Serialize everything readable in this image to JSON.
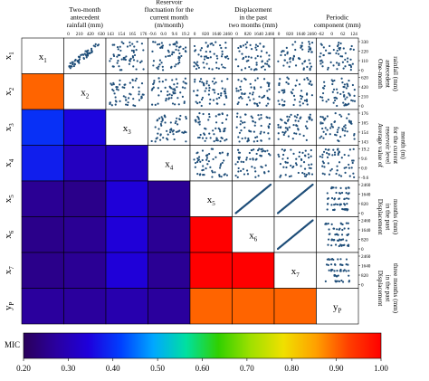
{
  "chart_data": {
    "type": "heatmap",
    "variables": [
      "x1",
      "x2",
      "x3",
      "x4",
      "x5",
      "x6",
      "x7",
      "yP"
    ],
    "variable_labels": [
      {
        "base": "x",
        "sub": "1"
      },
      {
        "base": "x",
        "sub": "2"
      },
      {
        "base": "x",
        "sub": "3"
      },
      {
        "base": "x",
        "sub": "4"
      },
      {
        "base": "x",
        "sub": "5"
      },
      {
        "base": "x",
        "sub": "6"
      },
      {
        "base": "x",
        "sub": "7"
      },
      {
        "base": "y",
        "sub": "P"
      }
    ],
    "top_headers": [
      {
        "lines": [
          "Two-month",
          "antecedent",
          "rainfall (mm)"
        ]
      },
      {
        "lines": [
          "Reservoir",
          "fluctuation for the",
          "current month",
          "(m/month)"
        ]
      },
      {
        "lines": [
          "Displacement",
          "in the past",
          "two months (mm)"
        ]
      },
      {
        "lines": [
          "Periodic",
          "component (mm)"
        ]
      }
    ],
    "right_headers": [
      {
        "lines": [
          "One-month",
          "antecedent",
          "rainfall (mm)"
        ]
      },
      {
        "lines": [
          "Average value of",
          "reservoir level",
          "for the current",
          "month (m)"
        ]
      },
      {
        "lines": [
          "Displacement",
          "in the past",
          "months (mm)"
        ]
      },
      {
        "lines": [
          "Displacement",
          "in the past",
          "three months (mm)"
        ]
      }
    ],
    "top_ticks": [
      {
        "col": 0,
        "labels": [
          "0",
          "210",
          "420",
          "630"
        ]
      },
      {
        "col": 1,
        "labels": [
          "143",
          "154",
          "165",
          "176"
        ]
      },
      {
        "col": 2,
        "labels": [
          "-9.6",
          "0.0",
          "9.6",
          "19.2"
        ]
      },
      {
        "col": 3,
        "labels": [
          "0",
          "820",
          "1640",
          "2460"
        ]
      },
      {
        "col": 4,
        "labels": [
          "0",
          "820",
          "1640",
          "2460"
        ]
      },
      {
        "col": 5,
        "labels": [
          "0",
          "820",
          "1640",
          "2460"
        ]
      },
      {
        "col": 6,
        "labels": [
          "-62",
          "0",
          "62",
          "124"
        ]
      }
    ],
    "right_ticks": [
      {
        "row": 0,
        "labels": [
          "330",
          "220",
          "110",
          "0"
        ]
      },
      {
        "row": 1,
        "labels": [
          "620",
          "420",
          "210",
          "0"
        ]
      },
      {
        "row": 2,
        "labels": [
          "176",
          "165",
          "154",
          "143"
        ]
      },
      {
        "row": 3,
        "labels": [
          "19.2",
          "9.6",
          "0.0",
          "-9.6"
        ]
      },
      {
        "row": 4,
        "labels": [
          "2460",
          "1640",
          "820",
          "0"
        ]
      },
      {
        "row": 5,
        "labels": [
          "2460",
          "1640",
          "820",
          "0"
        ]
      },
      {
        "row": 6,
        "labels": [
          "2460",
          "1640",
          "820",
          "0"
        ]
      }
    ],
    "mic_matrix": [
      [
        null,
        null,
        null,
        null,
        null,
        null,
        null,
        null
      ],
      [
        0.9,
        null,
        null,
        null,
        null,
        null,
        null,
        null
      ],
      [
        0.4,
        0.35,
        null,
        null,
        null,
        null,
        null,
        null
      ],
      [
        0.38,
        0.31,
        0.32,
        null,
        null,
        null,
        null,
        null
      ],
      [
        0.26,
        0.25,
        0.34,
        0.26,
        null,
        null,
        null,
        null
      ],
      [
        0.25,
        0.26,
        0.34,
        0.26,
        1.0,
        null,
        null,
        null
      ],
      [
        0.25,
        0.26,
        0.34,
        0.26,
        1.0,
        1.0,
        null,
        null
      ],
      [
        0.27,
        0.27,
        0.29,
        0.27,
        0.9,
        0.9,
        0.9,
        null
      ]
    ],
    "scatter_relations": {
      "0,1": "linear-noisy",
      "4,5": "linear",
      "4,6": "linear",
      "5,6": "linear",
      "4,7": "step",
      "5,7": "step",
      "6,7": "step"
    },
    "colorbar": {
      "label": "MIC",
      "min": 0.2,
      "max": 1.0,
      "ticks": [
        "0.20",
        "0.30",
        "0.40",
        "0.50",
        "0.60",
        "0.70",
        "0.80",
        "0.90",
        "1.00"
      ],
      "colors": [
        "#2a005a",
        "#2a00a0",
        "#1e00dc",
        "#0040ff",
        "#00a8ff",
        "#00e0a0",
        "#30d000",
        "#a0e000",
        "#f0e000",
        "#ffa000",
        "#ff4000",
        "#ff0000"
      ]
    },
    "colors": {
      "scatter_dot": "#1f4e79",
      "grid_line": "#000000"
    }
  }
}
